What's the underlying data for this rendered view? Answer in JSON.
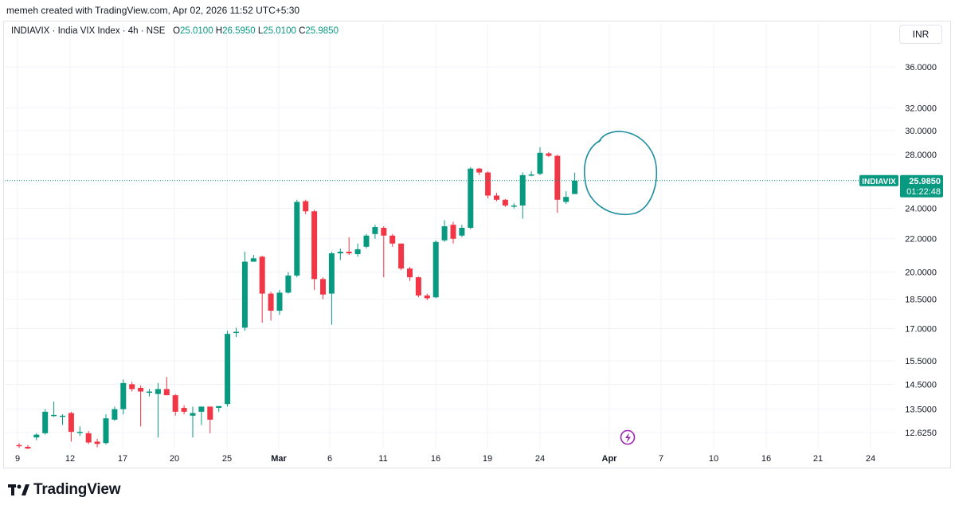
{
  "header": {
    "credit": "memeh created with TradingView.com, Apr 02, 2026 11:52 UTC+5:30"
  },
  "legend": {
    "symbol": "INDIAVIX · India VIX Index · 4h · NSE",
    "o_label": "O",
    "o_value": "25.0100",
    "h_label": "H",
    "h_value": "26.5950",
    "l_label": "L",
    "l_value": "25.0100",
    "c_label": "C",
    "c_value": "25.9850"
  },
  "currency_button": "INR",
  "last_price": {
    "ticker": "INDIAVIX",
    "price": "25.9850",
    "countdown": "01:22:48",
    "value": 25.985
  },
  "footer": {
    "brand": "TradingView"
  },
  "colors": {
    "up": "#089981",
    "down": "#f23645",
    "grid": "#f0f3fa",
    "text": "#131722",
    "annotation": "#1e8fa0",
    "bolt": "#9c27b0"
  },
  "icons": {
    "bolt": "lightning-bolt-icon",
    "logo": "tradingview-logo-icon"
  },
  "chart_data": {
    "type": "candlestick",
    "title": "INDIAVIX · India VIX Index · 4h · NSE",
    "y_scale": "log",
    "y_ticks": [
      "36.0000",
      "32.0000",
      "30.0000",
      "28.0000",
      "24.0000",
      "22.0000",
      "20.0000",
      "18.5000",
      "17.0000",
      "15.5000",
      "14.5000",
      "13.5000",
      "12.6250"
    ],
    "x_ticks": [
      "9",
      "12",
      "17",
      "20",
      "25",
      "Mar",
      "6",
      "11",
      "16",
      "19",
      "24",
      "Apr",
      "7",
      "10",
      "16",
      "21",
      "24"
    ],
    "ylim": [
      12.0,
      40.0
    ],
    "grid": true,
    "candles": [
      {
        "o": 12.18,
        "h": 12.25,
        "l": 12.08,
        "c": 12.16
      },
      {
        "o": 12.12,
        "h": 12.18,
        "l": 12.04,
        "c": 12.06
      },
      {
        "o": 12.45,
        "h": 12.6,
        "l": 12.35,
        "c": 12.55
      },
      {
        "o": 12.6,
        "h": 13.5,
        "l": 12.55,
        "c": 13.4
      },
      {
        "o": 13.25,
        "h": 13.8,
        "l": 13.2,
        "c": 13.28
      },
      {
        "o": 13.25,
        "h": 13.3,
        "l": 12.9,
        "c": 13.25
      },
      {
        "o": 13.35,
        "h": 13.4,
        "l": 12.3,
        "c": 12.65
      },
      {
        "o": 12.65,
        "h": 12.85,
        "l": 12.5,
        "c": 12.65
      },
      {
        "o": 12.6,
        "h": 12.68,
        "l": 12.22,
        "c": 12.27
      },
      {
        "o": 12.3,
        "h": 12.4,
        "l": 12.1,
        "c": 12.22
      },
      {
        "o": 12.25,
        "h": 13.3,
        "l": 12.2,
        "c": 13.15
      },
      {
        "o": 13.1,
        "h": 13.6,
        "l": 13.05,
        "c": 13.5
      },
      {
        "o": 13.5,
        "h": 14.7,
        "l": 13.3,
        "c": 14.55
      },
      {
        "o": 14.5,
        "h": 14.6,
        "l": 14.2,
        "c": 14.3
      },
      {
        "o": 14.35,
        "h": 14.45,
        "l": 12.85,
        "c": 14.2
      },
      {
        "o": 14.15,
        "h": 14.3,
        "l": 14.0,
        "c": 14.2
      },
      {
        "o": 14.1,
        "h": 14.55,
        "l": 12.45,
        "c": 14.3
      },
      {
        "o": 14.3,
        "h": 14.8,
        "l": 14.05,
        "c": 14.05
      },
      {
        "o": 14.05,
        "h": 14.1,
        "l": 13.25,
        "c": 13.4
      },
      {
        "o": 13.55,
        "h": 13.65,
        "l": 13.3,
        "c": 13.4
      },
      {
        "o": 13.25,
        "h": 13.6,
        "l": 12.45,
        "c": 13.35
      },
      {
        "o": 13.4,
        "h": 13.6,
        "l": 12.9,
        "c": 13.6
      },
      {
        "o": 13.6,
        "h": 13.6,
        "l": 12.6,
        "c": 13.1
      },
      {
        "o": 13.55,
        "h": 13.6,
        "l": 13.4,
        "c": 13.62
      },
      {
        "o": 13.7,
        "h": 16.9,
        "l": 13.6,
        "c": 16.75
      },
      {
        "o": 16.8,
        "h": 17.05,
        "l": 16.6,
        "c": 16.85
      },
      {
        "o": 17.05,
        "h": 21.2,
        "l": 16.9,
        "c": 20.6
      },
      {
        "o": 20.6,
        "h": 21.0,
        "l": 20.6,
        "c": 20.8
      },
      {
        "o": 20.9,
        "h": 20.95,
        "l": 17.3,
        "c": 18.8
      },
      {
        "o": 18.8,
        "h": 18.9,
        "l": 17.4,
        "c": 17.9
      },
      {
        "o": 17.9,
        "h": 19.0,
        "l": 17.7,
        "c": 18.85
      },
      {
        "o": 18.85,
        "h": 20.0,
        "l": 18.8,
        "c": 19.8
      },
      {
        "o": 19.8,
        "h": 24.6,
        "l": 19.7,
        "c": 24.45
      },
      {
        "o": 24.5,
        "h": 24.6,
        "l": 23.6,
        "c": 23.8
      },
      {
        "o": 23.8,
        "h": 23.9,
        "l": 19.0,
        "c": 19.6
      },
      {
        "o": 19.6,
        "h": 19.7,
        "l": 18.5,
        "c": 18.75
      },
      {
        "o": 18.8,
        "h": 21.2,
        "l": 17.2,
        "c": 21.1
      },
      {
        "o": 21.1,
        "h": 21.4,
        "l": 20.7,
        "c": 21.2
      },
      {
        "o": 21.2,
        "h": 22.1,
        "l": 21.0,
        "c": 21.1
      },
      {
        "o": 21.05,
        "h": 21.7,
        "l": 20.9,
        "c": 21.35
      },
      {
        "o": 21.5,
        "h": 22.3,
        "l": 21.4,
        "c": 22.2
      },
      {
        "o": 22.3,
        "h": 22.9,
        "l": 22.0,
        "c": 22.75
      },
      {
        "o": 22.7,
        "h": 22.8,
        "l": 19.7,
        "c": 22.2
      },
      {
        "o": 22.2,
        "h": 22.3,
        "l": 21.5,
        "c": 21.7
      },
      {
        "o": 21.7,
        "h": 21.7,
        "l": 20.1,
        "c": 20.2
      },
      {
        "o": 20.2,
        "h": 20.3,
        "l": 19.5,
        "c": 19.7
      },
      {
        "o": 19.7,
        "h": 19.75,
        "l": 18.6,
        "c": 18.7
      },
      {
        "o": 18.7,
        "h": 18.8,
        "l": 18.45,
        "c": 18.55
      },
      {
        "o": 18.6,
        "h": 21.9,
        "l": 18.55,
        "c": 21.8
      },
      {
        "o": 21.9,
        "h": 23.2,
        "l": 21.8,
        "c": 22.8
      },
      {
        "o": 22.9,
        "h": 23.1,
        "l": 21.7,
        "c": 22.0
      },
      {
        "o": 22.2,
        "h": 22.9,
        "l": 22.1,
        "c": 22.7
      },
      {
        "o": 22.7,
        "h": 27.0,
        "l": 22.6,
        "c": 26.9
      },
      {
        "o": 26.9,
        "h": 26.95,
        "l": 26.4,
        "c": 26.6
      },
      {
        "o": 26.6,
        "h": 26.7,
        "l": 24.7,
        "c": 24.9
      },
      {
        "o": 24.9,
        "h": 25.1,
        "l": 24.5,
        "c": 24.6
      },
      {
        "o": 24.6,
        "h": 24.65,
        "l": 24.1,
        "c": 24.2
      },
      {
        "o": 24.2,
        "h": 24.35,
        "l": 24.0,
        "c": 24.2
      },
      {
        "o": 24.2,
        "h": 26.6,
        "l": 23.3,
        "c": 26.4
      },
      {
        "o": 26.4,
        "h": 26.7,
        "l": 26.3,
        "c": 26.45
      },
      {
        "o": 26.5,
        "h": 28.6,
        "l": 26.4,
        "c": 28.15
      },
      {
        "o": 28.1,
        "h": 28.2,
        "l": 27.8,
        "c": 27.9
      },
      {
        "o": 27.9,
        "h": 28.0,
        "l": 23.7,
        "c": 24.6
      },
      {
        "o": 24.45,
        "h": 25.2,
        "l": 24.3,
        "c": 24.8
      },
      {
        "o": 25.01,
        "h": 26.595,
        "l": 25.01,
        "c": 25.985
      }
    ]
  }
}
